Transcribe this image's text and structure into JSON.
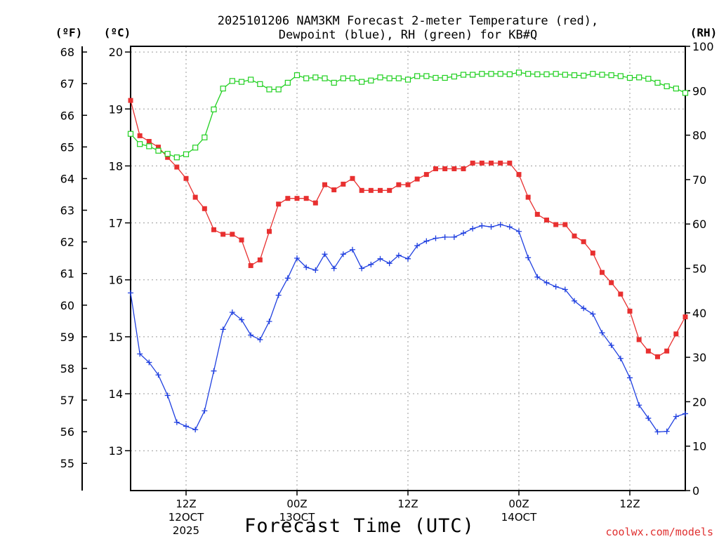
{
  "chart_data": {
    "type": "line",
    "title_line1": "2025101206 NAM3KM Forecast 2-meter Temperature (red),",
    "title_line2": "Dewpoint (blue), RH (green) for KB#Q",
    "xlabel": "Forecast Time (UTC)",
    "credit": "coolwx.com/models",
    "unit_f": "(ºF)",
    "unit_c": "(ºC)",
    "unit_rh": "(RH)",
    "x_start_hour": 6,
    "x_end_hour": 66,
    "x_ticks": [
      {
        "hour": 12,
        "line1": "12Z",
        "line2": "12OCT",
        "line3": "2025"
      },
      {
        "hour": 24,
        "line1": "00Z",
        "line2": "13OCT",
        "line3": ""
      },
      {
        "hour": 36,
        "line1": "12Z",
        "line2": "",
        "line3": ""
      },
      {
        "hour": 48,
        "line1": "00Z",
        "line2": "14OCT",
        "line3": ""
      },
      {
        "hour": 60,
        "line1": "12Z",
        "line2": "",
        "line3": ""
      }
    ],
    "y_celsius_range": [
      12.3,
      20.1
    ],
    "y_celsius_ticks": [
      13,
      14,
      15,
      16,
      17,
      18,
      19,
      20
    ],
    "y_fahrenheit_ticks": [
      55,
      56,
      57,
      58,
      59,
      60,
      61,
      62,
      63,
      64,
      65,
      66,
      67,
      68
    ],
    "y_rh_range": [
      0,
      100
    ],
    "y_rh_ticks": [
      0,
      10,
      20,
      30,
      40,
      50,
      60,
      70,
      80,
      90,
      100
    ],
    "series": [
      {
        "name": "Temperature",
        "color": "#e83030",
        "marker": "filled-square",
        "axis": "celsius",
        "values": [
          19.15,
          18.53,
          18.43,
          18.33,
          18.15,
          17.98,
          17.78,
          17.45,
          17.25,
          16.88,
          16.8,
          16.8,
          16.7,
          16.25,
          16.35,
          16.85,
          17.33,
          17.43,
          17.43,
          17.43,
          17.35,
          17.67,
          17.58,
          17.68,
          17.78,
          17.57,
          17.57,
          17.57,
          17.57,
          17.67,
          17.67,
          17.77,
          17.85,
          17.95,
          17.95,
          17.95,
          17.95,
          18.05,
          18.05,
          18.05,
          18.05,
          18.05,
          17.85,
          17.45,
          17.15,
          17.05,
          16.97,
          16.97,
          16.77,
          16.67,
          16.47,
          16.13,
          15.95,
          15.75,
          15.45,
          14.95,
          14.75,
          14.65,
          14.75,
          15.05,
          15.35
        ]
      },
      {
        "name": "Dewpoint",
        "color": "#2040e0",
        "marker": "plus",
        "axis": "celsius",
        "values": [
          15.77,
          14.7,
          14.55,
          14.33,
          13.97,
          13.5,
          13.43,
          13.37,
          13.7,
          14.4,
          15.13,
          15.43,
          15.3,
          15.03,
          14.95,
          15.27,
          15.73,
          16.03,
          16.38,
          16.22,
          16.17,
          16.45,
          16.2,
          16.45,
          16.53,
          16.2,
          16.27,
          16.37,
          16.29,
          16.43,
          16.37,
          16.6,
          16.68,
          16.73,
          16.75,
          16.75,
          16.82,
          16.9,
          16.95,
          16.93,
          16.97,
          16.93,
          16.85,
          16.39,
          16.05,
          15.95,
          15.88,
          15.83,
          15.63,
          15.5,
          15.4,
          15.07,
          14.85,
          14.62,
          14.28,
          13.8,
          13.57,
          13.33,
          13.34,
          13.6,
          13.65
        ]
      },
      {
        "name": "RH",
        "color": "#20d020",
        "marker": "open-square",
        "axis": "rh",
        "values": [
          80.3,
          78.0,
          77.5,
          76.5,
          75.8,
          75.0,
          75.7,
          77.2,
          79.5,
          85.8,
          90.5,
          92.2,
          92.0,
          92.5,
          91.5,
          90.3,
          90.3,
          91.8,
          93.5,
          92.8,
          93.0,
          92.8,
          91.8,
          92.8,
          92.8,
          92.0,
          92.3,
          93.0,
          92.8,
          92.8,
          92.5,
          93.3,
          93.3,
          92.9,
          92.9,
          93.2,
          93.6,
          93.6,
          93.8,
          93.8,
          93.8,
          93.7,
          94.1,
          93.8,
          93.7,
          93.7,
          93.8,
          93.6,
          93.5,
          93.4,
          93.8,
          93.6,
          93.5,
          93.3,
          92.9,
          93.0,
          92.7,
          91.8,
          91.0,
          90.5,
          89.5
        ]
      }
    ]
  }
}
